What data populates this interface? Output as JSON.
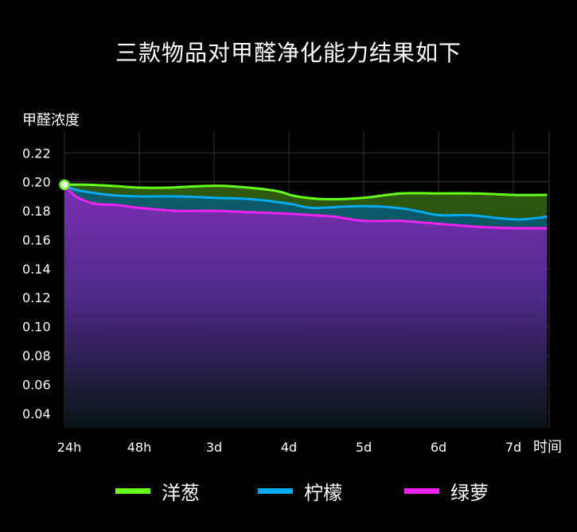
{
  "chart_data": {
    "type": "area",
    "title": "三款物品对甲醛净化能力结果如下",
    "ylabel": "甲醛浓度",
    "xlabel": "时间",
    "categories": [
      "24h",
      "48h",
      "3d",
      "4d",
      "5d",
      "6d",
      "7d"
    ],
    "ylim": [
      0.03,
      0.235
    ],
    "yticks": [
      0.04,
      0.06,
      0.08,
      0.1,
      0.12,
      0.14,
      0.16,
      0.18,
      0.2,
      0.22
    ],
    "grid": true,
    "legend_position": "bottom",
    "series": [
      {
        "name": "洋葱",
        "color": "#66ff1a",
        "x": [
          0,
          0.3,
          0.7,
          1.0,
          1.4,
          1.8,
          2.2,
          2.8,
          3.1,
          3.5,
          4.0,
          4.5,
          5.0,
          5.5,
          6.0,
          6.45
        ],
        "values": [
          0.198,
          0.198,
          0.197,
          0.196,
          0.196,
          0.197,
          0.197,
          0.194,
          0.19,
          0.188,
          0.189,
          0.192,
          0.192,
          0.192,
          0.191,
          0.191
        ]
      },
      {
        "name": "柠檬",
        "color": "#00aaee",
        "x": [
          0,
          0.2,
          0.6,
          1.0,
          1.5,
          2.0,
          2.5,
          3.0,
          3.3,
          3.8,
          4.2,
          4.6,
          5.0,
          5.4,
          5.8,
          6.1,
          6.45
        ],
        "values": [
          0.197,
          0.194,
          0.191,
          0.19,
          0.19,
          0.189,
          0.188,
          0.185,
          0.182,
          0.183,
          0.183,
          0.181,
          0.177,
          0.177,
          0.175,
          0.174,
          0.176
        ]
      },
      {
        "name": "绿萝",
        "color": "#ee22ee",
        "x": [
          0,
          0.15,
          0.4,
          0.7,
          1.0,
          1.5,
          2.0,
          2.5,
          3.0,
          3.3,
          3.6,
          4.0,
          4.5,
          5.0,
          5.5,
          6.0,
          6.45
        ],
        "values": [
          0.198,
          0.19,
          0.185,
          0.184,
          0.182,
          0.18,
          0.18,
          0.179,
          0.178,
          0.177,
          0.176,
          0.173,
          0.173,
          0.171,
          0.169,
          0.168,
          0.168
        ]
      }
    ],
    "start_marker": {
      "x": "24h",
      "value": 0.198
    }
  }
}
